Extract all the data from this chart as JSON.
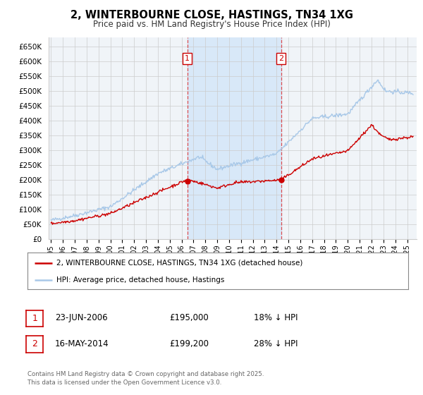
{
  "title": "2, WINTERBOURNE CLOSE, HASTINGS, TN34 1XG",
  "subtitle": "Price paid vs. HM Land Registry's House Price Index (HPI)",
  "hpi_color": "#a8c8e8",
  "price_color": "#cc0000",
  "marker_color": "#cc0000",
  "background_color": "#ffffff",
  "grid_color": "#cccccc",
  "plot_bg_color": "#f0f4f8",
  "sale1_date_num": 2006.48,
  "sale1_label": "1",
  "sale1_price": 195000,
  "sale1_hpi_text": "18% ↓ HPI",
  "sale1_date_text": "23-JUN-2006",
  "sale2_date_num": 2014.37,
  "sale2_label": "2",
  "sale2_price": 199200,
  "sale2_hpi_text": "28% ↓ HPI",
  "sale2_date_text": "16-MAY-2014",
  "ylabel_ticks": [
    "£0",
    "£50K",
    "£100K",
    "£150K",
    "£200K",
    "£250K",
    "£300K",
    "£350K",
    "£400K",
    "£450K",
    "£500K",
    "£550K",
    "£600K",
    "£650K"
  ],
  "ytick_vals": [
    0,
    50000,
    100000,
    150000,
    200000,
    250000,
    300000,
    350000,
    400000,
    450000,
    500000,
    550000,
    600000,
    650000
  ],
  "xmin": 1994.8,
  "xmax": 2025.8,
  "ymin": 0,
  "ymax": 680000,
  "legend_line1": "2, WINTERBOURNE CLOSE, HASTINGS, TN34 1XG (detached house)",
  "legend_line2": "HPI: Average price, detached house, Hastings",
  "footnote": "Contains HM Land Registry data © Crown copyright and database right 2025.\nThis data is licensed under the Open Government Licence v3.0.",
  "shade_color": "#d8e8f8"
}
